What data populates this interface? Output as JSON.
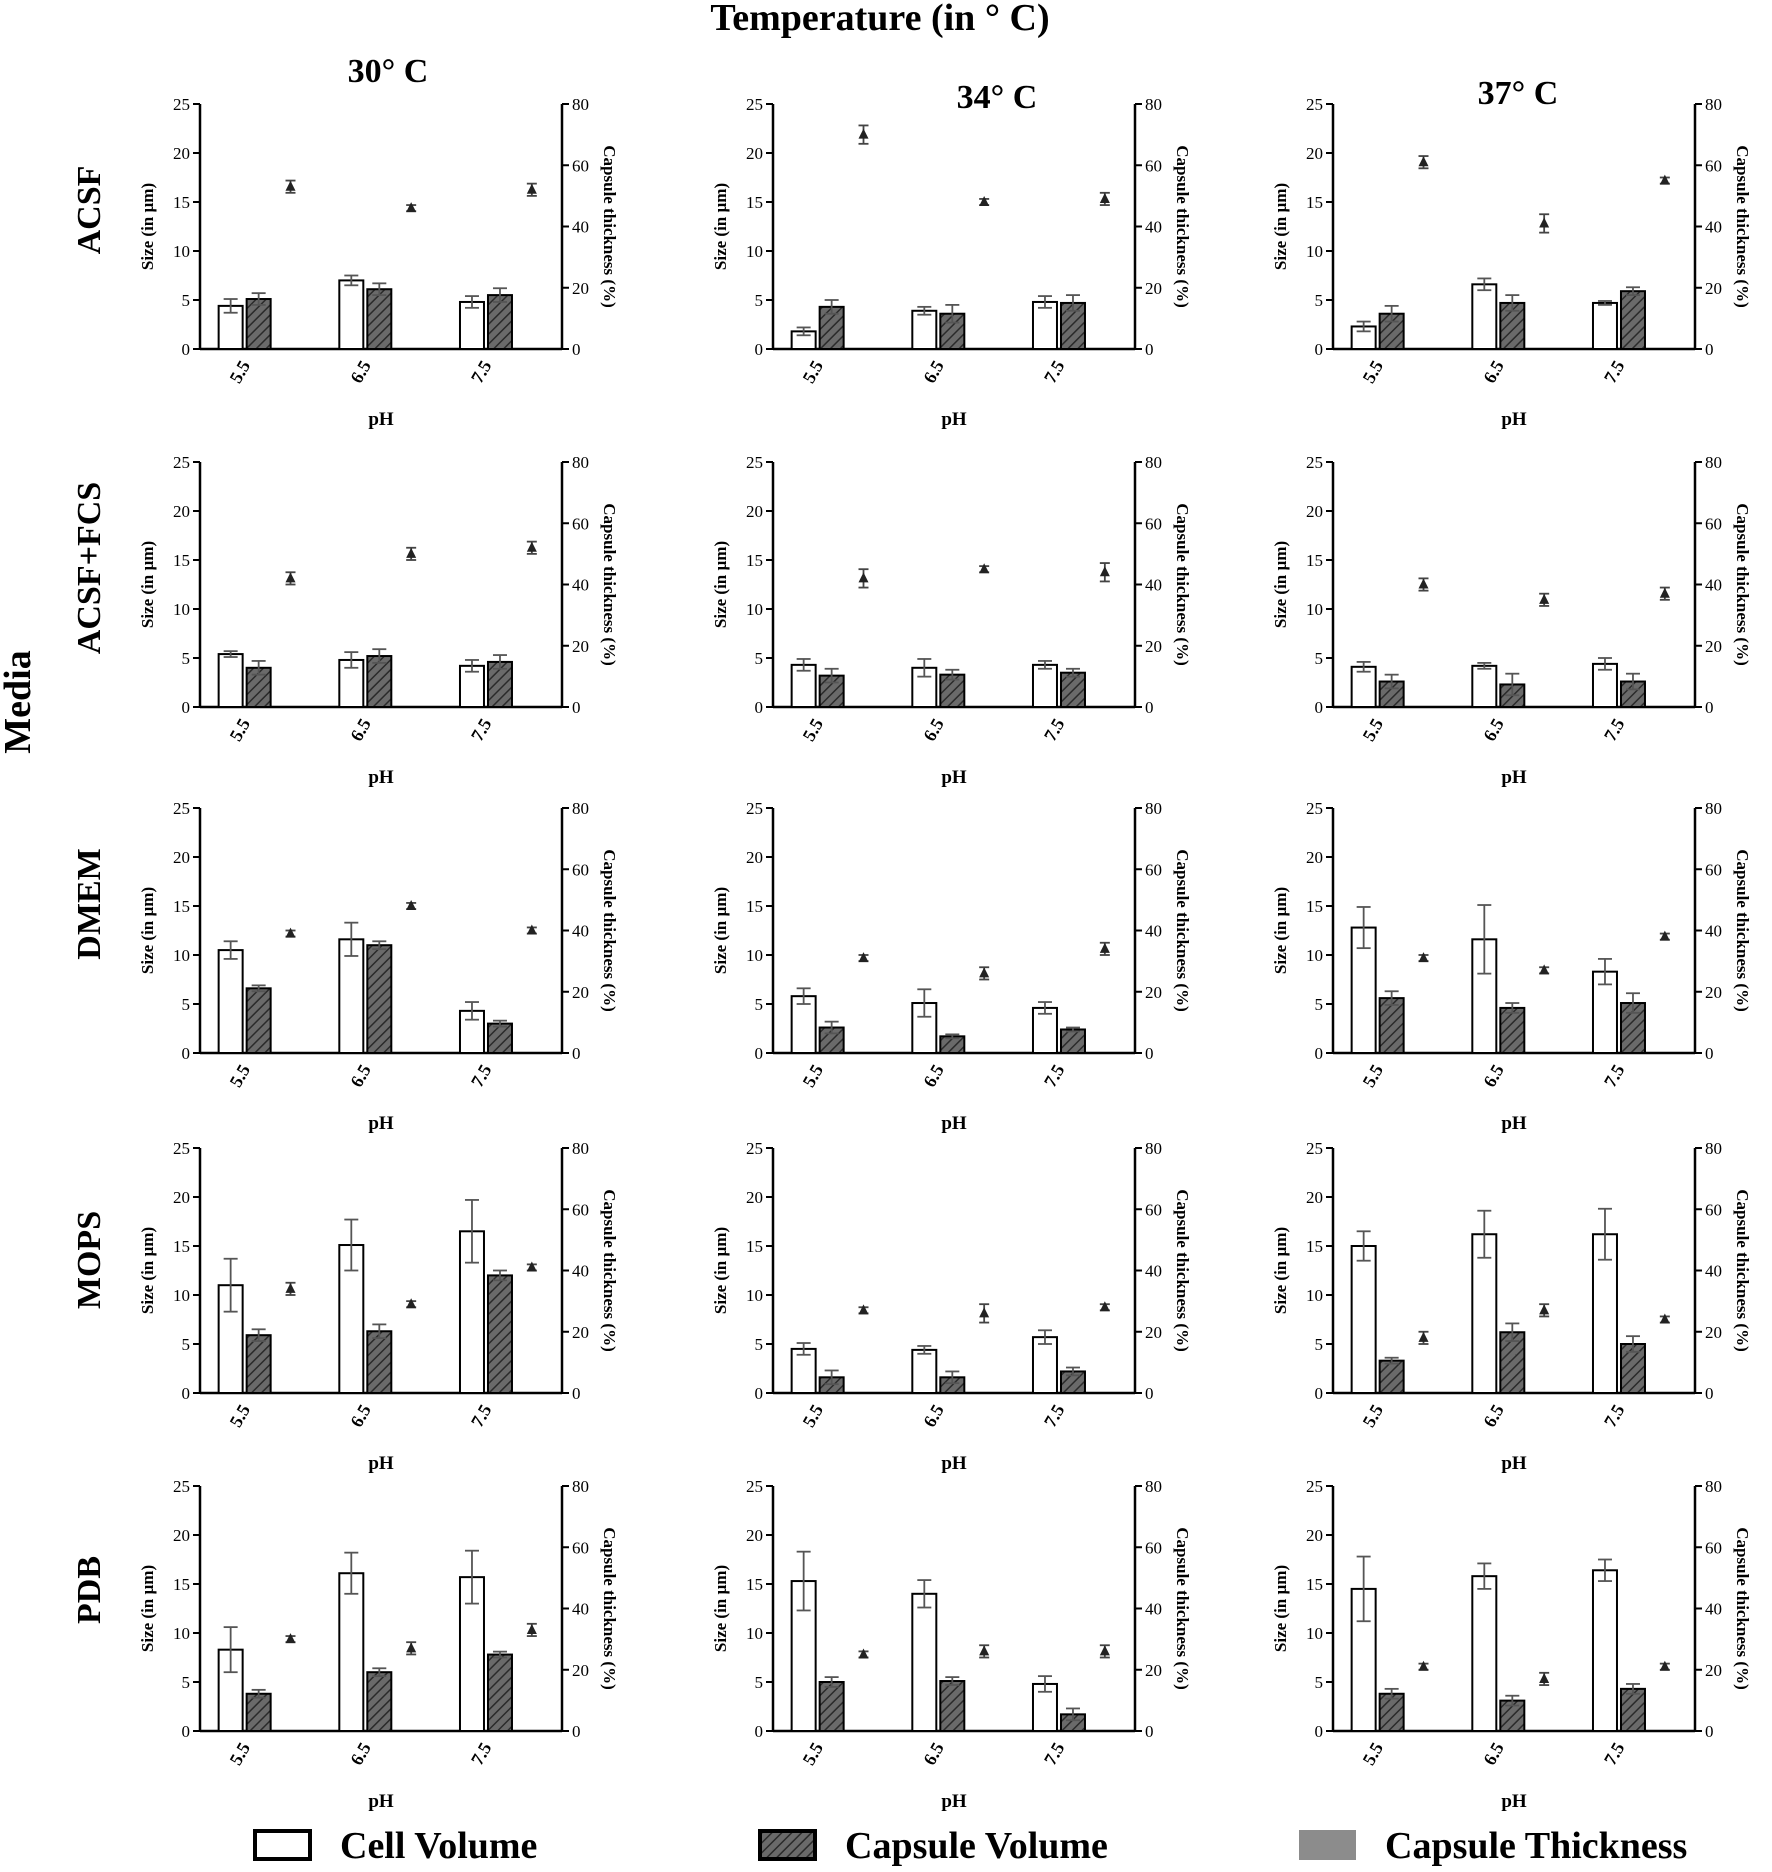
{
  "figure": {
    "title": "Temperature (in ° C)",
    "row_axis_label": "Media",
    "columns": [
      "30° C",
      "34° C",
      "37° C"
    ],
    "rows": [
      "ACSF",
      "ACSF+FCS",
      "DMEM",
      "MOPS",
      "PDB"
    ],
    "legend": [
      {
        "label": "Cell Volume",
        "style": "open"
      },
      {
        "label": "Capsule Volume",
        "style": "hatched"
      },
      {
        "label": "Capsule Thickness",
        "style": "filled"
      }
    ],
    "colors": {
      "cell": "#ffffff",
      "capsule": "#5a5a5a",
      "thickness": "#222222",
      "legend_thickness": "#8c8c8c"
    }
  },
  "chart_data": [
    {
      "type": "bar",
      "medium": "ACSF",
      "temperature": "30° C",
      "categories": [
        "5.5",
        "6.5",
        "7.5"
      ],
      "xlabel": "pH",
      "ylabel": "Size (in µm)",
      "y2label": "Capsule thickness (%)",
      "ylim": [
        0,
        25
      ],
      "yticks": [
        0,
        5,
        10,
        15,
        20,
        25
      ],
      "y2lim": [
        0,
        80
      ],
      "y2ticks": [
        0,
        20,
        40,
        60,
        80
      ],
      "series": [
        {
          "name": "Cell Volume",
          "values": [
            4.4,
            7.0,
            4.8
          ],
          "err": [
            0.7,
            0.5,
            0.6
          ]
        },
        {
          "name": "Capsule Volume",
          "values": [
            5.1,
            6.1,
            5.5
          ],
          "err": [
            0.6,
            0.6,
            0.7
          ]
        },
        {
          "name": "Capsule Thickness",
          "axis": "right",
          "values": [
            53,
            46,
            52
          ],
          "err": [
            2,
            1,
            2
          ]
        }
      ]
    },
    {
      "type": "bar",
      "medium": "ACSF",
      "temperature": "34° C",
      "categories": [
        "5.5",
        "6.5",
        "7.5"
      ],
      "xlabel": "pH",
      "ylabel": "Size (in µm)",
      "y2label": "Capsule thickness (%)",
      "ylim": [
        0,
        25
      ],
      "yticks": [
        0,
        5,
        10,
        15,
        20,
        25
      ],
      "y2lim": [
        0,
        80
      ],
      "y2ticks": [
        0,
        20,
        40,
        60,
        80
      ],
      "series": [
        {
          "name": "Cell Volume",
          "values": [
            1.8,
            3.9,
            4.8
          ],
          "err": [
            0.4,
            0.4,
            0.6
          ]
        },
        {
          "name": "Capsule Volume",
          "values": [
            4.3,
            3.6,
            4.7
          ],
          "err": [
            0.7,
            0.9,
            0.8
          ]
        },
        {
          "name": "Capsule Thickness",
          "axis": "right",
          "values": [
            70,
            48,
            49
          ],
          "err": [
            3,
            1,
            2
          ]
        }
      ]
    },
    {
      "type": "bar",
      "medium": "ACSF",
      "temperature": "37° C",
      "categories": [
        "5.5",
        "6.5",
        "7.5"
      ],
      "xlabel": "pH",
      "ylabel": "Size (in µm)",
      "y2label": "Capsule thickness (%)",
      "ylim": [
        0,
        25
      ],
      "yticks": [
        0,
        5,
        10,
        15,
        20,
        25
      ],
      "y2lim": [
        0,
        80
      ],
      "y2ticks": [
        0,
        20,
        40,
        60,
        80
      ],
      "series": [
        {
          "name": "Cell Volume",
          "values": [
            2.3,
            6.6,
            4.7
          ],
          "err": [
            0.5,
            0.6,
            0.2
          ]
        },
        {
          "name": "Capsule Volume",
          "values": [
            3.6,
            4.7,
            5.9
          ],
          "err": [
            0.8,
            0.8,
            0.4
          ]
        },
        {
          "name": "Capsule Thickness",
          "axis": "right",
          "values": [
            61,
            41,
            55
          ],
          "err": [
            2,
            3,
            1
          ]
        }
      ]
    },
    {
      "type": "bar",
      "medium": "ACSF+FCS",
      "temperature": "30° C",
      "categories": [
        "5.5",
        "6.5",
        "7.5"
      ],
      "xlabel": "pH",
      "ylabel": "Size (in µm)",
      "y2label": "Capsule thickness (%)",
      "ylim": [
        0,
        25
      ],
      "yticks": [
        0,
        5,
        10,
        15,
        20,
        25
      ],
      "y2lim": [
        0,
        80
      ],
      "y2ticks": [
        0,
        20,
        40,
        60,
        80
      ],
      "series": [
        {
          "name": "Cell Volume",
          "values": [
            5.4,
            4.8,
            4.2
          ],
          "err": [
            0.3,
            0.8,
            0.6
          ]
        },
        {
          "name": "Capsule Volume",
          "values": [
            4.0,
            5.2,
            4.6
          ],
          "err": [
            0.7,
            0.7,
            0.7
          ]
        },
        {
          "name": "Capsule Thickness",
          "axis": "right",
          "values": [
            42,
            50,
            52
          ],
          "err": [
            2,
            2,
            2
          ]
        }
      ]
    },
    {
      "type": "bar",
      "medium": "ACSF+FCS",
      "temperature": "34° C",
      "categories": [
        "5.5",
        "6.5",
        "7.5"
      ],
      "xlabel": "pH",
      "ylabel": "Size (in µm)",
      "y2label": "Capsule thickness (%)",
      "ylim": [
        0,
        25
      ],
      "yticks": [
        0,
        5,
        10,
        15,
        20,
        25
      ],
      "y2lim": [
        0,
        80
      ],
      "y2ticks": [
        0,
        20,
        40,
        60,
        80
      ],
      "series": [
        {
          "name": "Cell Volume",
          "values": [
            4.3,
            4.0,
            4.3
          ],
          "err": [
            0.6,
            0.9,
            0.4
          ]
        },
        {
          "name": "Capsule Volume",
          "values": [
            3.2,
            3.3,
            3.5
          ],
          "err": [
            0.7,
            0.5,
            0.4
          ]
        },
        {
          "name": "Capsule Thickness",
          "axis": "right",
          "values": [
            42,
            45,
            44
          ],
          "err": [
            3,
            1,
            3
          ]
        }
      ]
    },
    {
      "type": "bar",
      "medium": "ACSF+FCS",
      "temperature": "37° C",
      "categories": [
        "5.5",
        "6.5",
        "7.5"
      ],
      "xlabel": "pH",
      "ylabel": "Size (in µm)",
      "y2label": "Capsule thickness (%)",
      "ylim": [
        0,
        25
      ],
      "yticks": [
        0,
        5,
        10,
        15,
        20,
        25
      ],
      "y2lim": [
        0,
        80
      ],
      "y2ticks": [
        0,
        20,
        40,
        60,
        80
      ],
      "series": [
        {
          "name": "Cell Volume",
          "values": [
            4.1,
            4.2,
            4.4
          ],
          "err": [
            0.5,
            0.3,
            0.6
          ]
        },
        {
          "name": "Capsule Volume",
          "values": [
            2.6,
            2.3,
            2.6
          ],
          "err": [
            0.7,
            1.1,
            0.8
          ]
        },
        {
          "name": "Capsule Thickness",
          "axis": "right",
          "values": [
            40,
            35,
            37
          ],
          "err": [
            2,
            2,
            2
          ]
        }
      ]
    },
    {
      "type": "bar",
      "medium": "DMEM",
      "temperature": "30° C",
      "categories": [
        "5.5",
        "6.5",
        "7.5"
      ],
      "xlabel": "pH",
      "ylabel": "Size (in µm)",
      "y2label": "Capsule thickness (%)",
      "ylim": [
        0,
        25
      ],
      "yticks": [
        0,
        5,
        10,
        15,
        20,
        25
      ],
      "y2lim": [
        0,
        80
      ],
      "y2ticks": [
        0,
        20,
        40,
        60,
        80
      ],
      "series": [
        {
          "name": "Cell Volume",
          "values": [
            10.5,
            11.6,
            4.3
          ],
          "err": [
            0.9,
            1.7,
            0.9
          ]
        },
        {
          "name": "Capsule Volume",
          "values": [
            6.6,
            11.0,
            3.0
          ],
          "err": [
            0.3,
            0.4,
            0.3
          ]
        },
        {
          "name": "Capsule Thickness",
          "axis": "right",
          "values": [
            39,
            48,
            40
          ],
          "err": [
            1,
            1,
            1
          ]
        }
      ]
    },
    {
      "type": "bar",
      "medium": "DMEM",
      "temperature": "34° C",
      "categories": [
        "5.5",
        "6.5",
        "7.5"
      ],
      "xlabel": "pH",
      "ylabel": "Size (in µm)",
      "y2label": "Capsule thickness (%)",
      "ylim": [
        0,
        25
      ],
      "yticks": [
        0,
        5,
        10,
        15,
        20,
        25
      ],
      "y2lim": [
        0,
        80
      ],
      "y2ticks": [
        0,
        20,
        40,
        60,
        80
      ],
      "series": [
        {
          "name": "Cell Volume",
          "values": [
            5.8,
            5.1,
            4.6
          ],
          "err": [
            0.8,
            1.4,
            0.6
          ]
        },
        {
          "name": "Capsule Volume",
          "values": [
            2.6,
            1.7,
            2.4
          ],
          "err": [
            0.6,
            0.2,
            0.2
          ]
        },
        {
          "name": "Capsule Thickness",
          "axis": "right",
          "values": [
            31,
            26,
            34
          ],
          "err": [
            1,
            2,
            2
          ]
        }
      ]
    },
    {
      "type": "bar",
      "medium": "DMEM",
      "temperature": "37° C",
      "categories": [
        "5.5",
        "6.5",
        "7.5"
      ],
      "xlabel": "pH",
      "ylabel": "Size (in µm)",
      "y2label": "Capsule thickness (%)",
      "ylim": [
        0,
        25
      ],
      "yticks": [
        0,
        5,
        10,
        15,
        20,
        25
      ],
      "y2lim": [
        0,
        80
      ],
      "y2ticks": [
        0,
        20,
        40,
        60,
        80
      ],
      "series": [
        {
          "name": "Cell Volume",
          "values": [
            12.8,
            11.6,
            8.3
          ],
          "err": [
            2.1,
            3.5,
            1.3
          ]
        },
        {
          "name": "Capsule Volume",
          "values": [
            5.6,
            4.6,
            5.1
          ],
          "err": [
            0.7,
            0.5,
            1.0
          ]
        },
        {
          "name": "Capsule Thickness",
          "axis": "right",
          "values": [
            31,
            27,
            38
          ],
          "err": [
            1,
            1,
            1
          ]
        }
      ]
    },
    {
      "type": "bar",
      "medium": "MOPS",
      "temperature": "30° C",
      "categories": [
        "5.5",
        "6.5",
        "7.5"
      ],
      "xlabel": "pH",
      "ylabel": "Size (in µm)",
      "y2label": "Capsule thickness (%)",
      "ylim": [
        0,
        25
      ],
      "yticks": [
        0,
        5,
        10,
        15,
        20,
        25
      ],
      "y2lim": [
        0,
        80
      ],
      "y2ticks": [
        0,
        20,
        40,
        60,
        80
      ],
      "series": [
        {
          "name": "Cell Volume",
          "values": [
            11.0,
            15.1,
            16.5
          ],
          "err": [
            2.7,
            2.6,
            3.2
          ]
        },
        {
          "name": "Capsule Volume",
          "values": [
            5.9,
            6.3,
            12.0
          ],
          "err": [
            0.6,
            0.7,
            0.5
          ]
        },
        {
          "name": "Capsule Thickness",
          "axis": "right",
          "values": [
            34,
            29,
            41
          ],
          "err": [
            2,
            1,
            1
          ]
        }
      ]
    },
    {
      "type": "bar",
      "medium": "MOPS",
      "temperature": "34° C",
      "categories": [
        "5.5",
        "6.5",
        "7.5"
      ],
      "xlabel": "pH",
      "ylabel": "Size (in µm)",
      "y2label": "Capsule thickness (%)",
      "ylim": [
        0,
        25
      ],
      "yticks": [
        0,
        5,
        10,
        15,
        20,
        25
      ],
      "y2lim": [
        0,
        80
      ],
      "y2ticks": [
        0,
        20,
        40,
        60,
        80
      ],
      "series": [
        {
          "name": "Cell Volume",
          "values": [
            4.5,
            4.4,
            5.7
          ],
          "err": [
            0.6,
            0.4,
            0.7
          ]
        },
        {
          "name": "Capsule Volume",
          "values": [
            1.6,
            1.6,
            2.2
          ],
          "err": [
            0.7,
            0.6,
            0.4
          ]
        },
        {
          "name": "Capsule Thickness",
          "axis": "right",
          "values": [
            27,
            26,
            28
          ],
          "err": [
            1,
            3,
            1
          ]
        }
      ]
    },
    {
      "type": "bar",
      "medium": "MOPS",
      "temperature": "37° C",
      "categories": [
        "5.5",
        "6.5",
        "7.5"
      ],
      "xlabel": "pH",
      "ylabel": "Size (in µm)",
      "y2label": "Capsule thickness (%)",
      "ylim": [
        0,
        25
      ],
      "yticks": [
        0,
        5,
        10,
        15,
        20,
        25
      ],
      "y2lim": [
        0,
        80
      ],
      "y2ticks": [
        0,
        20,
        40,
        60,
        80
      ],
      "series": [
        {
          "name": "Cell Volume",
          "values": [
            15.0,
            16.2,
            16.2
          ],
          "err": [
            1.5,
            2.4,
            2.6
          ]
        },
        {
          "name": "Capsule Volume",
          "values": [
            3.3,
            6.2,
            5.0
          ],
          "err": [
            0.3,
            0.9,
            0.8
          ]
        },
        {
          "name": "Capsule Thickness",
          "axis": "right",
          "values": [
            18,
            27,
            24
          ],
          "err": [
            2,
            2,
            1
          ]
        }
      ]
    },
    {
      "type": "bar",
      "medium": "PDB",
      "temperature": "30° C",
      "categories": [
        "5.5",
        "6.5",
        "7.5"
      ],
      "xlabel": "pH",
      "ylabel": "Size (in µm)",
      "y2label": "Capsule thickness (%)",
      "ylim": [
        0,
        25
      ],
      "yticks": [
        0,
        5,
        10,
        15,
        20,
        25
      ],
      "y2lim": [
        0,
        80
      ],
      "y2ticks": [
        0,
        20,
        40,
        60,
        80
      ],
      "series": [
        {
          "name": "Cell Volume",
          "values": [
            8.3,
            16.1,
            15.7
          ],
          "err": [
            2.3,
            2.1,
            2.7
          ]
        },
        {
          "name": "Capsule Volume",
          "values": [
            3.8,
            6.0,
            7.8
          ],
          "err": [
            0.4,
            0.4,
            0.3
          ]
        },
        {
          "name": "Capsule Thickness",
          "axis": "right",
          "values": [
            30,
            27,
            33
          ],
          "err": [
            1,
            2,
            2
          ]
        }
      ]
    },
    {
      "type": "bar",
      "medium": "PDB",
      "temperature": "34° C",
      "categories": [
        "5.5",
        "6.5",
        "7.5"
      ],
      "xlabel": "pH",
      "ylabel": "Size (in µm)",
      "y2label": "Capsule thickness (%)",
      "ylim": [
        0,
        25
      ],
      "yticks": [
        0,
        5,
        10,
        15,
        20,
        25
      ],
      "y2lim": [
        0,
        80
      ],
      "y2ticks": [
        0,
        20,
        40,
        60,
        80
      ],
      "series": [
        {
          "name": "Cell Volume",
          "values": [
            15.3,
            14.0,
            4.8
          ],
          "err": [
            3.0,
            1.4,
            0.8
          ]
        },
        {
          "name": "Capsule Volume",
          "values": [
            5.0,
            5.1,
            1.7
          ],
          "err": [
            0.5,
            0.4,
            0.6
          ]
        },
        {
          "name": "Capsule Thickness",
          "axis": "right",
          "values": [
            25,
            26,
            26
          ],
          "err": [
            1,
            2,
            2
          ]
        }
      ]
    },
    {
      "type": "bar",
      "medium": "PDB",
      "temperature": "37° C",
      "categories": [
        "5.5",
        "6.5",
        "7.5"
      ],
      "xlabel": "pH",
      "ylabel": "Size (in µm)",
      "y2label": "Capsule thickness (%)",
      "ylim": [
        0,
        25
      ],
      "yticks": [
        0,
        5,
        10,
        15,
        20,
        25
      ],
      "y2lim": [
        0,
        80
      ],
      "y2ticks": [
        0,
        20,
        40,
        60,
        80
      ],
      "series": [
        {
          "name": "Cell Volume",
          "values": [
            14.5,
            15.8,
            16.4
          ],
          "err": [
            3.3,
            1.3,
            1.1
          ]
        },
        {
          "name": "Capsule Volume",
          "values": [
            3.8,
            3.1,
            4.3
          ],
          "err": [
            0.5,
            0.5,
            0.5
          ]
        },
        {
          "name": "Capsule Thickness",
          "axis": "right",
          "values": [
            21,
            17,
            21
          ],
          "err": [
            1,
            2,
            1
          ]
        }
      ]
    }
  ]
}
